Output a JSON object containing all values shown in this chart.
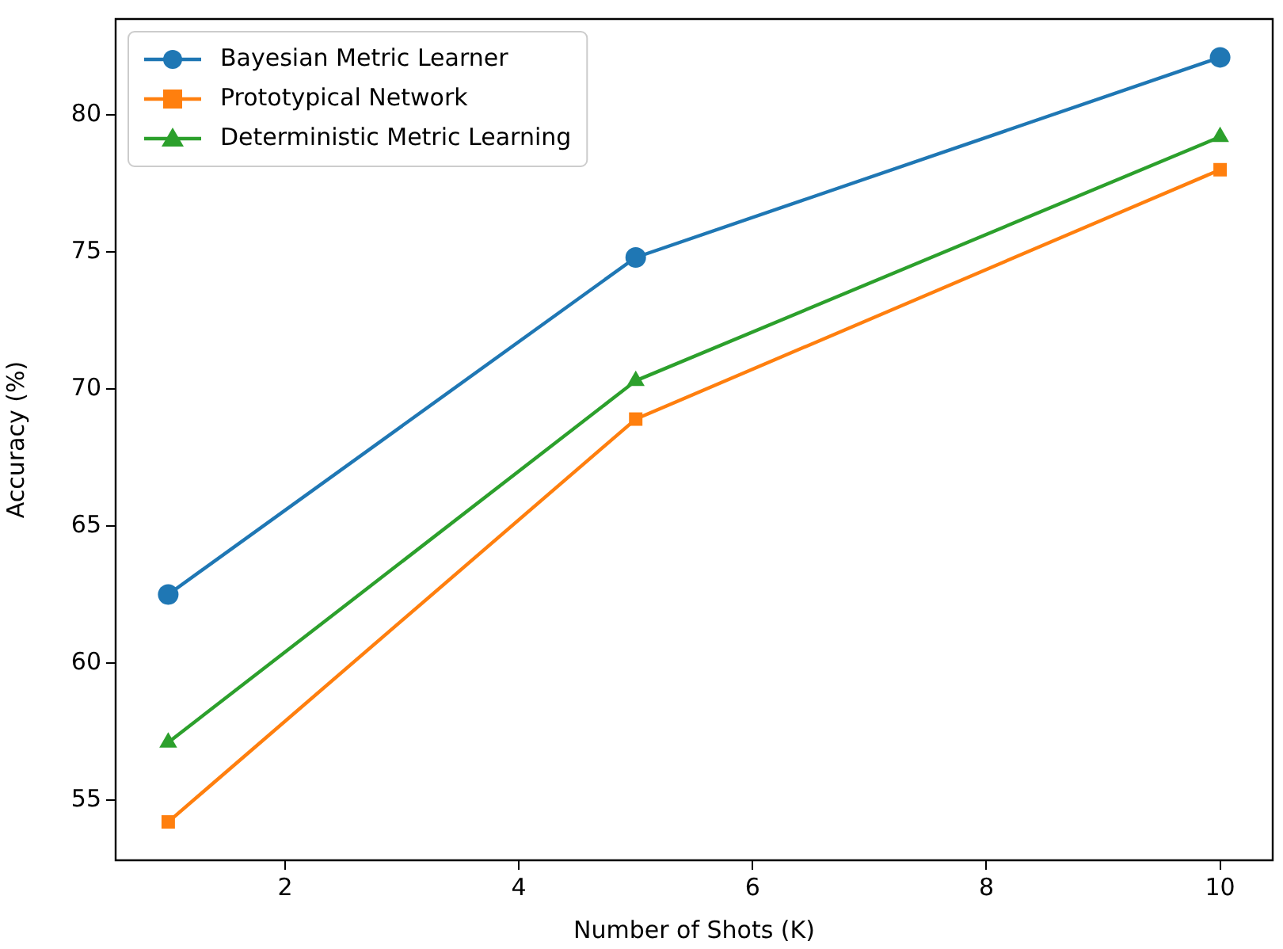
{
  "chart_data": {
    "type": "line",
    "xlabel": "Number of Shots (K)",
    "ylabel": "Accuracy (%)",
    "x": [
      1,
      5,
      10
    ],
    "series": [
      {
        "name": "Bayesian Metric Learner",
        "color": "#1f77b4",
        "marker": "circle",
        "values": [
          62.5,
          74.8,
          82.1
        ]
      },
      {
        "name": "Prototypical Network",
        "color": "#ff7f0e",
        "marker": "square",
        "values": [
          54.2,
          68.9,
          78.0
        ]
      },
      {
        "name": "Deterministic Metric Learning",
        "color": "#2ca02c",
        "marker": "triangle",
        "values": [
          57.1,
          70.3,
          79.2
        ]
      }
    ],
    "xlim": [
      0.55,
      10.45
    ],
    "xticks": [
      2,
      4,
      6,
      8,
      10
    ],
    "ylim": [
      52.8,
      83.5
    ],
    "yticks": [
      55,
      60,
      65,
      70,
      75,
      80
    ],
    "grid": false,
    "legend": "top left",
    "line_style": "solid"
  }
}
